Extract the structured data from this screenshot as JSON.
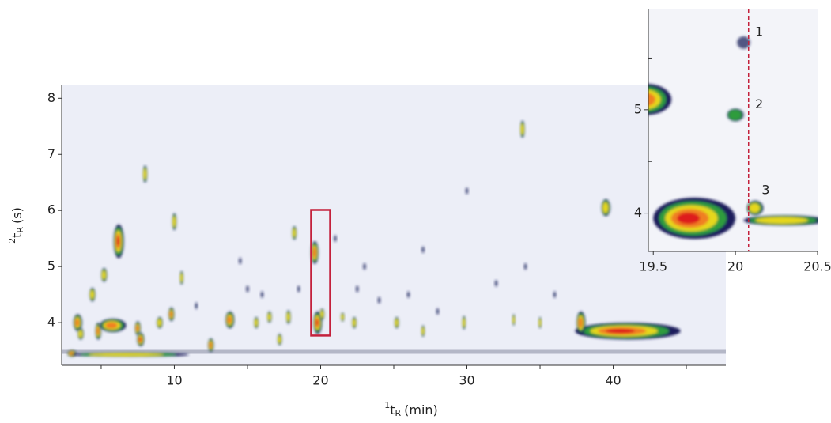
{
  "chart_data": [
    {
      "type": "contour",
      "xlabel": {
        "sup": "1",
        "main": "t",
        "sub": "R",
        "unit": "(min)"
      },
      "ylabel": {
        "sup": "2",
        "main": "t",
        "sub": "R",
        "unit": "(s)"
      },
      "xlim": [
        2.3,
        47.7
      ],
      "ylim": [
        3.24,
        8.23
      ],
      "xticks": [
        10,
        20,
        30,
        40
      ],
      "xticks_minor": [
        5,
        15,
        25,
        35,
        45
      ],
      "yticks": [
        4,
        5,
        6,
        7,
        8
      ],
      "background": "#eceef7",
      "baseline": 3.48,
      "colors": [
        "#1b1f5c",
        "#2e9c3c",
        "#e6d71c",
        "#f08022",
        "#de1f1f"
      ],
      "highlight": {
        "xlim": [
          19.35,
          20.65
        ],
        "ylim": [
          3.77,
          6.01
        ],
        "color": "#c4213c"
      },
      "peaks": {
        "x": [
          3.0,
          7.0,
          3.4,
          3.6,
          4.4,
          4.8,
          5.2,
          5.8,
          6.2,
          7.5,
          7.7,
          8.0,
          9.0,
          9.8,
          10.0,
          10.5,
          12.5,
          13.8,
          15.6,
          16.5,
          17.2,
          17.8,
          18.2,
          19.6,
          19.8,
          20.1,
          21.5,
          22.3,
          25.2,
          27.0,
          29.8,
          33.2,
          33.8,
          35.0,
          39.5,
          41.0,
          37.8,
          14.5,
          16.0,
          18.5,
          22.5,
          24.0,
          26.0,
          28.0,
          30.0,
          32.0,
          36.0,
          11.5,
          15.0,
          21.0,
          23.0,
          27.0,
          34.0
        ],
        "y": [
          3.45,
          3.43,
          4.0,
          3.8,
          4.5,
          3.85,
          4.85,
          3.95,
          5.45,
          3.9,
          3.7,
          6.65,
          4.0,
          4.15,
          5.8,
          4.8,
          3.6,
          4.05,
          4.0,
          4.1,
          3.7,
          4.1,
          5.6,
          5.25,
          4.0,
          4.15,
          4.1,
          4.0,
          4.0,
          3.85,
          4.0,
          4.05,
          7.45,
          4.0,
          6.05,
          3.85,
          4.0,
          5.1,
          4.5,
          4.6,
          4.6,
          4.4,
          4.5,
          4.2,
          6.35,
          4.7,
          4.5,
          4.3,
          4.6,
          5.5,
          5.0,
          5.3,
          5.0
        ],
        "w": [
          0.3,
          4.0,
          0.3,
          0.2,
          0.2,
          0.2,
          0.2,
          0.9,
          0.35,
          0.2,
          0.25,
          0.15,
          0.2,
          0.2,
          0.15,
          0.12,
          0.2,
          0.3,
          0.15,
          0.15,
          0.15,
          0.15,
          0.15,
          0.25,
          0.3,
          0.15,
          0.12,
          0.15,
          0.15,
          0.12,
          0.12,
          0.1,
          0.15,
          0.1,
          0.3,
          3.6,
          0.3,
          0.1,
          0.1,
          0.1,
          0.1,
          0.1,
          0.1,
          0.1,
          0.1,
          0.1,
          0.1,
          0.1,
          0.1,
          0.1,
          0.1,
          0.1,
          0.1
        ],
        "h": [
          0.06,
          0.04,
          0.15,
          0.1,
          0.12,
          0.15,
          0.12,
          0.12,
          0.3,
          0.12,
          0.12,
          0.15,
          0.1,
          0.12,
          0.15,
          0.12,
          0.12,
          0.15,
          0.1,
          0.1,
          0.1,
          0.12,
          0.12,
          0.2,
          0.2,
          0.1,
          0.08,
          0.1,
          0.1,
          0.1,
          0.12,
          0.1,
          0.15,
          0.1,
          0.15,
          0.15,
          0.2,
          0.06,
          0.06,
          0.06,
          0.06,
          0.06,
          0.06,
          0.06,
          0.06,
          0.06,
          0.06,
          0.06,
          0.06,
          0.06,
          0.06,
          0.06,
          0.06
        ],
        "intensity": [
          0.8,
          0.5,
          0.8,
          0.6,
          0.5,
          0.7,
          0.6,
          0.8,
          0.9,
          0.7,
          0.9,
          0.6,
          0.6,
          0.7,
          0.6,
          0.5,
          0.7,
          0.8,
          0.5,
          0.5,
          0.5,
          0.6,
          0.5,
          0.8,
          0.9,
          0.6,
          0.5,
          0.6,
          0.6,
          0.5,
          0.6,
          0.5,
          0.5,
          0.5,
          0.6,
          0.9,
          0.7,
          0.2,
          0.2,
          0.2,
          0.2,
          0.2,
          0.2,
          0.2,
          0.2,
          0.2,
          0.2,
          0.2,
          0.2,
          0.2,
          0.2,
          0.2,
          0.2
        ]
      }
    },
    {
      "type": "contour",
      "xlim": [
        19.47,
        20.5
      ],
      "ylim": [
        3.63,
        5.97
      ],
      "xticks": [
        19.5,
        {
          "value": 20,
          "label": "20"
        },
        20.5
      ],
      "yticks": [
        4,
        5
      ],
      "yticks_minor": [
        4.5,
        5.5
      ],
      "background": "#f3f4f9",
      "colors": [
        "#1b1f5c",
        "#2e9c3c",
        "#e6d71c",
        "#f08022",
        "#de1f1f"
      ],
      "marker_x": 20.08,
      "marker_color": "#c4213c",
      "annotations": [
        {
          "text": "1",
          "x": 20.12,
          "y": 5.75
        },
        {
          "text": "2",
          "x": 20.12,
          "y": 5.05
        },
        {
          "text": "3",
          "x": 20.16,
          "y": 4.22
        }
      ],
      "peaks": {
        "x": [
          19.46,
          20.0,
          20.05,
          19.75,
          20.12,
          20.3
        ],
        "y": [
          5.1,
          4.95,
          5.65,
          3.95,
          4.05,
          3.93
        ],
        "w": [
          0.15,
          0.05,
          0.04,
          0.25,
          0.05,
          0.25
        ],
        "h": [
          0.15,
          0.06,
          0.06,
          0.2,
          0.07,
          0.05
        ],
        "intensity": [
          0.8,
          0.4,
          0.2,
          1.0,
          0.5,
          0.5
        ]
      }
    }
  ]
}
